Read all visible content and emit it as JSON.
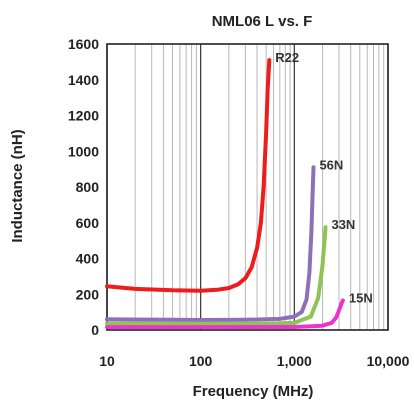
{
  "chart_data": {
    "type": "line",
    "title": "NML06 L vs. F",
    "xlabel": "Frequency (MHz)",
    "ylabel": "Inductance (nH)",
    "x_scale": "log",
    "xlim": [
      10,
      10000
    ],
    "ylim": [
      0,
      1600
    ],
    "x_ticks": [
      {
        "value": 10,
        "label": "10"
      },
      {
        "value": 100,
        "label": "100"
      },
      {
        "value": 1000,
        "label": "1,000"
      },
      {
        "value": 10000,
        "label": "10,000"
      }
    ],
    "y_ticks": [
      {
        "value": 0,
        "label": "0"
      },
      {
        "value": 200,
        "label": "200"
      },
      {
        "value": 400,
        "label": "400"
      },
      {
        "value": 600,
        "label": "600"
      },
      {
        "value": 800,
        "label": "800"
      },
      {
        "value": 1000,
        "label": "1000"
      },
      {
        "value": 1200,
        "label": "1200"
      },
      {
        "value": 1400,
        "label": "1400"
      },
      {
        "value": 1600,
        "label": "1600"
      }
    ],
    "grid": true,
    "series": [
      {
        "name": "R22",
        "color": "#ee1c1c",
        "x": [
          10,
          20,
          50,
          100,
          150,
          200,
          250,
          300,
          350,
          400,
          440,
          470,
          500,
          520,
          540
        ],
        "y": [
          245,
          230,
          222,
          220,
          225,
          235,
          255,
          290,
          350,
          460,
          600,
          800,
          1100,
          1350,
          1510
        ]
      },
      {
        "name": "56N",
        "color": "#8e70b8",
        "x": [
          10,
          50,
          100,
          300,
          700,
          1000,
          1200,
          1350,
          1450,
          1520,
          1570,
          1600
        ],
        "y": [
          60,
          57,
          56,
          57,
          62,
          75,
          100,
          170,
          320,
          550,
          780,
          910
        ]
      },
      {
        "name": "33N",
        "color": "#8dc454",
        "x": [
          10,
          100,
          500,
          1000,
          1500,
          1800,
          2000,
          2100,
          2150
        ],
        "y": [
          36,
          35,
          35,
          40,
          75,
          180,
          360,
          500,
          575
        ]
      },
      {
        "name": "15N",
        "color": "#ee33cc",
        "x": [
          10,
          100,
          1000,
          2000,
          2500,
          2800,
          3000,
          3200,
          3300
        ],
        "y": [
          16,
          16,
          17,
          24,
          40,
          70,
          110,
          150,
          165
        ]
      }
    ]
  }
}
